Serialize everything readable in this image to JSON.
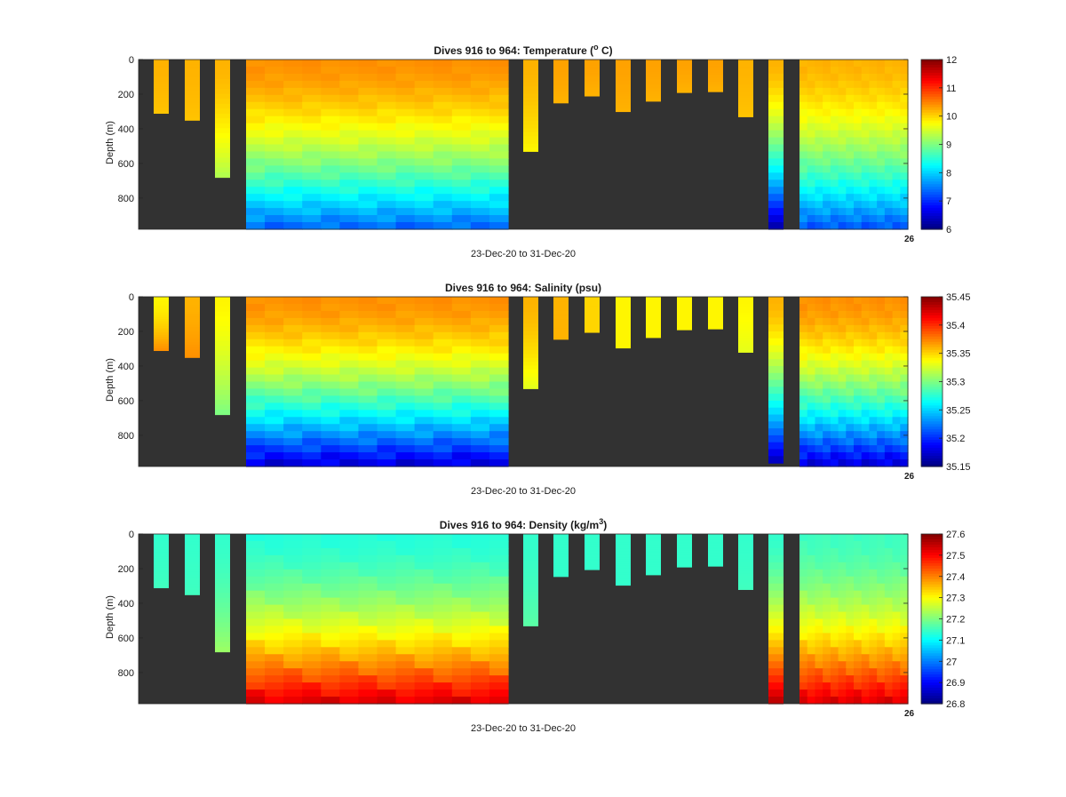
{
  "chart_data": [
    {
      "type": "heatmap",
      "title": "Dives 916 to 964: Temperature (",
      "title_sup": "o",
      "title_post": " C)",
      "ylabel": "Depth (m)",
      "xlabel": "23-Dec-20 to 31-Dec-20",
      "xtick_label": "26",
      "y_ticks": [
        0,
        200,
        400,
        600,
        800
      ],
      "ylim": [
        0,
        980
      ],
      "y_reversed": true,
      "colorbar": {
        "colormap": "jet",
        "min": 6,
        "max": 12,
        "ticks": [
          "12",
          "11",
          "10",
          "9",
          "8",
          "7",
          "6"
        ]
      },
      "background": "#323232",
      "profiles": [
        {
          "col": 1,
          "max_depth": 310,
          "top": 10.2,
          "bottom": 10.1
        },
        {
          "col": 2,
          "max_depth": 350,
          "top": 10.2,
          "bottom": 10.1
        },
        {
          "col": 3,
          "max_depth": 680,
          "top": 10.2,
          "bottom": 9.3
        },
        {
          "col": 4,
          "max_depth": 980,
          "block": true,
          "top": 10.4,
          "bottom": 7.4
        },
        {
          "col": 5,
          "max_depth": 530,
          "top": 10.2,
          "bottom": 9.8
        },
        {
          "col": 6,
          "max_depth": 250,
          "top": 10.3,
          "bottom": 10.2
        },
        {
          "col": 7,
          "max_depth": 210,
          "top": 10.3,
          "bottom": 10.2
        },
        {
          "col": 8,
          "max_depth": 300,
          "top": 10.3,
          "bottom": 10.2
        },
        {
          "col": 9,
          "max_depth": 240,
          "top": 10.3,
          "bottom": 10.2
        },
        {
          "col": 10,
          "max_depth": 190,
          "top": 10.3,
          "bottom": 10.2
        },
        {
          "col": 11,
          "max_depth": 185,
          "top": 10.3,
          "bottom": 10.2
        },
        {
          "col": 12,
          "max_depth": 330,
          "top": 10.2,
          "bottom": 10.1
        },
        {
          "col": 13,
          "max_depth": 980,
          "top": 10.2,
          "bottom": 6.3
        },
        {
          "col": 14,
          "max_depth": 980,
          "block": true,
          "top": 10.2,
          "bottom": 7.3
        }
      ]
    },
    {
      "type": "heatmap",
      "title": "Dives 916 to 964: Salinity (psu)",
      "title_sup": "",
      "title_post": "",
      "ylabel": "Depth (m)",
      "xlabel": "23-Dec-20 to 31-Dec-20",
      "xtick_label": "26",
      "y_ticks": [
        0,
        200,
        400,
        600,
        800
      ],
      "ylim": [
        0,
        980
      ],
      "y_reversed": true,
      "colorbar": {
        "colormap": "jet",
        "min": 35.15,
        "max": 35.45,
        "ticks": [
          "35.45",
          "35.4",
          "35.35",
          "35.3",
          "35.25",
          "35.2",
          "35.15"
        ]
      },
      "background": "#323232",
      "profiles": [
        {
          "col": 1,
          "max_depth": 310,
          "top": 35.34,
          "bottom": 35.37
        },
        {
          "col": 2,
          "max_depth": 350,
          "top": 35.36,
          "bottom": 35.37
        },
        {
          "col": 3,
          "max_depth": 680,
          "top": 35.34,
          "bottom": 35.3
        },
        {
          "col": 4,
          "max_depth": 980,
          "block": true,
          "top": 35.37,
          "bottom": 35.18
        },
        {
          "col": 5,
          "max_depth": 530,
          "top": 35.36,
          "bottom": 35.33
        },
        {
          "col": 6,
          "max_depth": 245,
          "top": 35.36,
          "bottom": 35.36
        },
        {
          "col": 7,
          "max_depth": 205,
          "top": 35.35,
          "bottom": 35.35
        },
        {
          "col": 8,
          "max_depth": 295,
          "top": 35.34,
          "bottom": 35.34
        },
        {
          "col": 9,
          "max_depth": 235,
          "top": 35.34,
          "bottom": 35.34
        },
        {
          "col": 10,
          "max_depth": 190,
          "top": 35.34,
          "bottom": 35.34
        },
        {
          "col": 11,
          "max_depth": 185,
          "top": 35.34,
          "bottom": 35.34
        },
        {
          "col": 12,
          "max_depth": 320,
          "top": 35.34,
          "bottom": 35.33
        },
        {
          "col": 13,
          "max_depth": 960,
          "top": 35.36,
          "bottom": 35.17
        },
        {
          "col": 14,
          "max_depth": 980,
          "block": true,
          "top": 35.37,
          "bottom": 35.18
        }
      ]
    },
    {
      "type": "heatmap",
      "title": "Dives 916 to 964: Density (kg/m",
      "title_sup": "3",
      "title_post": ")",
      "ylabel": "Depth (m)",
      "xlabel": "23-Dec-20 to 31-Dec-20",
      "xtick_label": "26",
      "y_ticks": [
        0,
        200,
        400,
        600,
        800
      ],
      "ylim": [
        0,
        980
      ],
      "y_reversed": true,
      "colorbar": {
        "colormap": "jet",
        "min": 26.8,
        "max": 27.6,
        "ticks": [
          "27.6",
          "27.5",
          "27.4",
          "27.3",
          "27.2",
          "27.1",
          "27",
          "26.9",
          "26.8"
        ]
      },
      "background": "#323232",
      "profiles": [
        {
          "col": 1,
          "max_depth": 310,
          "top": 27.14,
          "bottom": 27.15
        },
        {
          "col": 2,
          "max_depth": 350,
          "top": 27.14,
          "bottom": 27.15
        },
        {
          "col": 3,
          "max_depth": 680,
          "top": 27.14,
          "bottom": 27.22
        },
        {
          "col": 4,
          "max_depth": 980,
          "block": true,
          "top": 27.13,
          "bottom": 27.52
        },
        {
          "col": 5,
          "max_depth": 530,
          "top": 27.14,
          "bottom": 27.17
        },
        {
          "col": 6,
          "max_depth": 245,
          "top": 27.14,
          "bottom": 27.14
        },
        {
          "col": 7,
          "max_depth": 205,
          "top": 27.14,
          "bottom": 27.14
        },
        {
          "col": 8,
          "max_depth": 295,
          "top": 27.14,
          "bottom": 27.14
        },
        {
          "col": 9,
          "max_depth": 235,
          "top": 27.14,
          "bottom": 27.14
        },
        {
          "col": 10,
          "max_depth": 190,
          "top": 27.14,
          "bottom": 27.14
        },
        {
          "col": 11,
          "max_depth": 185,
          "top": 27.14,
          "bottom": 27.14
        },
        {
          "col": 12,
          "max_depth": 320,
          "top": 27.14,
          "bottom": 27.15
        },
        {
          "col": 13,
          "max_depth": 980,
          "top": 27.14,
          "bottom": 27.55
        },
        {
          "col": 14,
          "max_depth": 980,
          "block": true,
          "top": 27.15,
          "bottom": 27.52
        }
      ]
    }
  ]
}
